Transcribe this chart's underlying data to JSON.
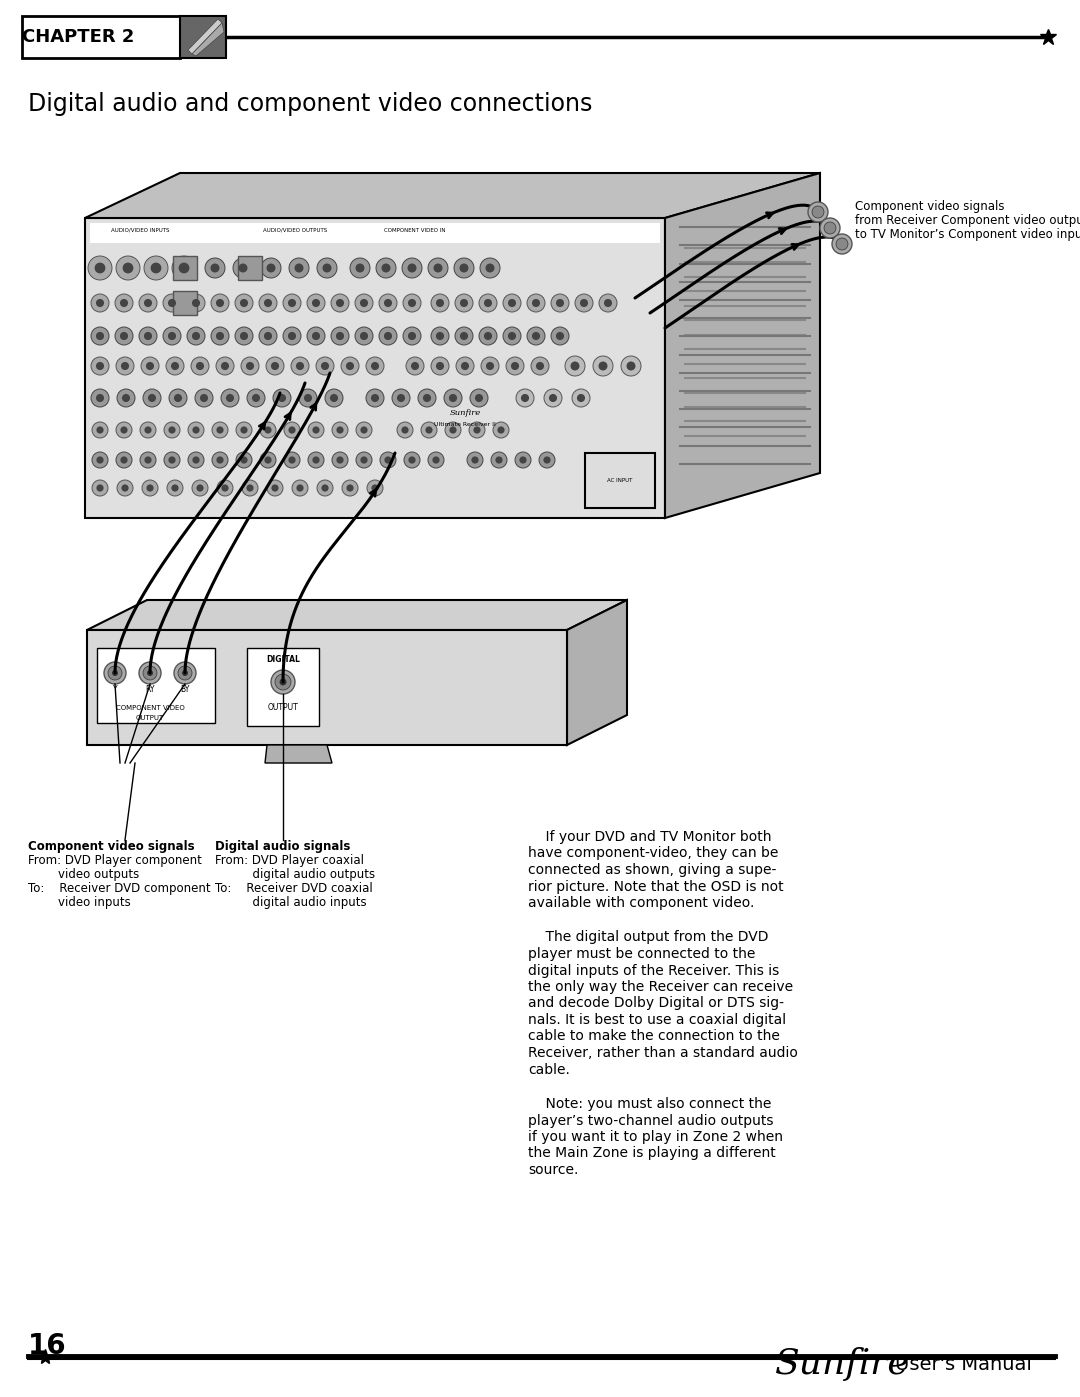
{
  "title": "Digital audio and component video connections",
  "chapter": "CHAPTER 2",
  "page_number": "16",
  "footer_brand": "Sunfire",
  "footer_text": "User's Manual",
  "background_color": "#ffffff",
  "top_annotation_line1": "Component video signals",
  "top_annotation_line2": "from Receiver Component video outputs",
  "top_annotation_line3": "to TV Monitor’s Component video inputs",
  "ann1_line1": "Component video signals",
  "ann1_line2": "From: DVD Player component",
  "ann1_line3": "        video outputs",
  "ann1_line4": "To:    Receiver DVD component",
  "ann1_line5": "        video inputs",
  "ann2_line1": "Digital audio signals",
  "ann2_line2": "From: DVD Player coaxial",
  "ann2_line3": "          digital audio outputs",
  "ann2_line4": "To:    Receiver DVD coaxial",
  "ann2_line5": "          digital audio inputs",
  "para1_line1": "    If your DVD and TV Monitor both",
  "para1_line2": "have component-video, they can be",
  "para1_line3": "connected as shown, giving a supe-",
  "para1_line4": "rior picture. Note that the OSD is not",
  "para1_line5": "available with component video.",
  "para2_line1": "    The digital output from the DVD",
  "para2_line2": "player must be connected to the",
  "para2_line3": "digital inputs of the Receiver. This is",
  "para2_line4": "the only way the Receiver can receive",
  "para2_line5": "and decode Dolby Digital or DTS sig-",
  "para2_line6": "nals. It is best to use a coaxial digital",
  "para2_line7": "cable to make the connection to the",
  "para2_line8": "Receiver, rather than a standard audio",
  "para2_line9": "cable.",
  "para3_line1": "    Note: you must also connect the",
  "para3_line2": "player’s two-channel audio outputs",
  "para3_line3": "if you want it to play in Zone 2 when",
  "para3_line4": "the Main Zone is playing a different",
  "para3_line5": "source."
}
